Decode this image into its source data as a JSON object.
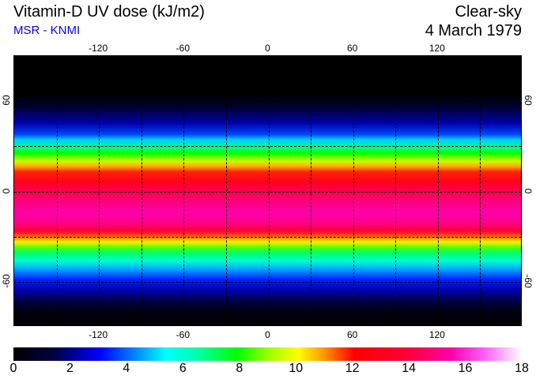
{
  "header": {
    "title": "Vitamin-D UV dose (kJ/m2)",
    "source": "MSR - KNMI",
    "condition": "Clear-sky",
    "date": "4 March 1979"
  },
  "map": {
    "lon_ticks": [
      "-120",
      "-60",
      "0",
      "60",
      "120"
    ],
    "lat_ticks": [
      "60",
      "0",
      "-60"
    ],
    "lon_tick_values": [
      -120,
      -60,
      0,
      60,
      120
    ],
    "lat_tick_values": [
      60,
      0,
      -60
    ],
    "grid_step_deg": 30
  },
  "colorbar": {
    "labels": [
      "0",
      "2",
      "4",
      "6",
      "8",
      "10",
      "12",
      "14",
      "16",
      "18"
    ],
    "min": 0,
    "max": 18,
    "colors": [
      "#000000",
      "#0000ff",
      "#00ffff",
      "#00ff00",
      "#ffff00",
      "#ff0000",
      "#ff00aa",
      "#ffffff"
    ]
  }
}
